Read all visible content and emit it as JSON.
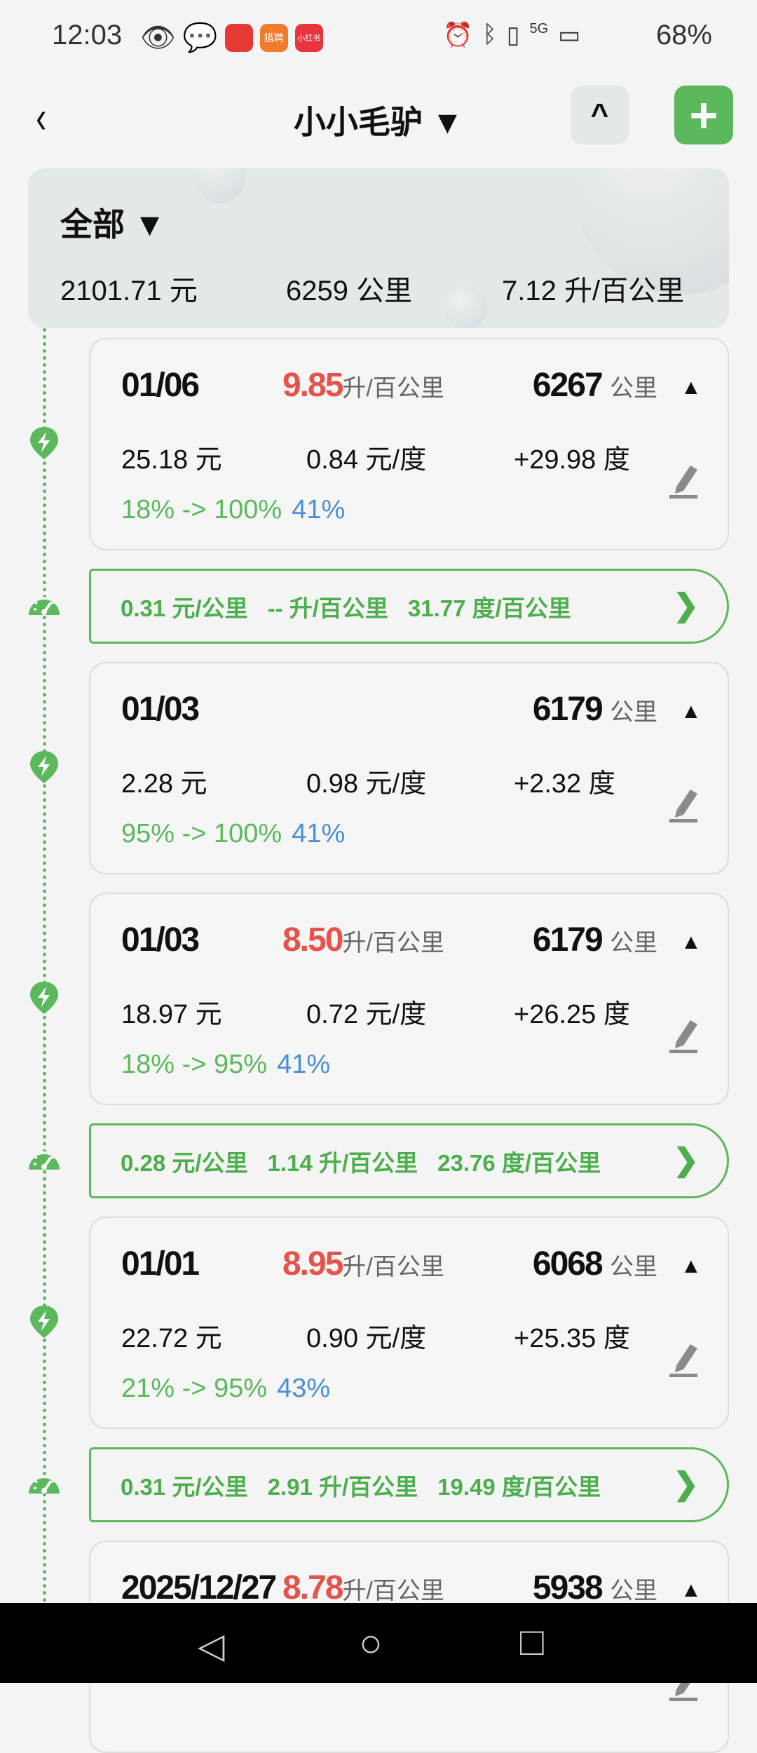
{
  "status": {
    "time": "12:03",
    "battery": "68%",
    "network": "5G",
    "apps": [
      {
        "label": "",
        "color": "#e53935"
      },
      {
        "label": "猎聘",
        "color": "#f07b2a"
      },
      {
        "label": "小红书",
        "color": "#e8343f"
      }
    ]
  },
  "header": {
    "title": "小小毛驴 ▼",
    "back": "‹",
    "collapse": "^",
    "add": "+"
  },
  "summary": {
    "filter": "全部 ▼",
    "total_cost": "2101.71 元",
    "total_km": "6259 公里",
    "avg": "7.12 升/百公里"
  },
  "colors": {
    "green": "#5cb85c",
    "red": "#e5534b",
    "blue": "#4a8fd4"
  },
  "entries": [
    {
      "type": "charge",
      "date": "01/06",
      "cons": "9.85",
      "cons_unit": "升/百公里",
      "km": "6267",
      "km_unit": "公里",
      "cost": "25.18 元",
      "price": "0.84 元/度",
      "energy": "+29.98 度",
      "range": "18% -> 100%",
      "pct": "41%"
    },
    {
      "type": "summary",
      "per_km": "0.31 元/公里",
      "fuel": "-- 升/百公里",
      "elec": "31.77 度/百公里"
    },
    {
      "type": "charge",
      "date": "01/03",
      "cons": "",
      "cons_unit": "",
      "km": "6179",
      "km_unit": "公里",
      "cost": "2.28 元",
      "price": "0.98 元/度",
      "energy": "+2.32 度",
      "range": "95% -> 100%",
      "pct": "41%"
    },
    {
      "type": "charge",
      "date": "01/03",
      "cons": "8.50",
      "cons_unit": "升/百公里",
      "km": "6179",
      "km_unit": "公里",
      "cost": "18.97 元",
      "price": "0.72 元/度",
      "energy": "+26.25 度",
      "range": "18% -> 95%",
      "pct": "41%"
    },
    {
      "type": "summary",
      "per_km": "0.28 元/公里",
      "fuel": "1.14 升/百公里",
      "elec": "23.76 度/百公里"
    },
    {
      "type": "charge",
      "date": "01/01",
      "cons": "8.95",
      "cons_unit": "升/百公里",
      "km": "6068",
      "km_unit": "公里",
      "cost": "22.72 元",
      "price": "0.90 元/度",
      "energy": "+25.35 度",
      "range": "21% -> 95%",
      "pct": "43%"
    },
    {
      "type": "summary",
      "per_km": "0.31 元/公里",
      "fuel": "2.91 升/百公里",
      "elec": "19.49 度/百公里"
    },
    {
      "type": "charge",
      "date": "2025/12/27",
      "cons": "8.78",
      "cons_unit": "升/百公里",
      "km": "5938",
      "km_unit": "公里",
      "cost": "",
      "price": "",
      "energy": "",
      "range": "",
      "pct": ""
    }
  ],
  "nav": {
    "back": "◁",
    "home": "○",
    "recents": "□"
  }
}
